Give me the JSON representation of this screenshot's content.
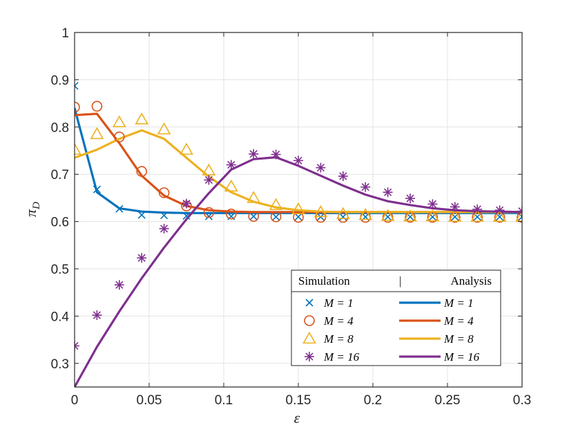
{
  "chart_data": {
    "type": "line",
    "title": "",
    "xlabel": "ε",
    "ylabel_main": "π",
    "ylabel_sub": "D",
    "xlim": [
      0,
      0.3
    ],
    "ylim": [
      0.25,
      1
    ],
    "xticks": [
      0,
      0.05,
      0.1,
      0.15,
      0.2,
      0.25,
      0.3
    ],
    "xtick_labels": [
      "0",
      "0.05",
      "0.1",
      "0.15",
      "0.2",
      "0.25",
      "0.3"
    ],
    "yticks": [
      0.3,
      0.4,
      0.5,
      0.6,
      0.7,
      0.8,
      0.9,
      1
    ],
    "ytick_labels": [
      "0.3",
      "0.4",
      "0.5",
      "0.6",
      "0.7",
      "0.8",
      "0.9",
      "1"
    ],
    "grid": true,
    "legend_position": "bottom-right",
    "legend_header": {
      "left": "Simulation",
      "sep": "|",
      "right": "Analysis"
    },
    "legend_entries": [
      {
        "sim_label": "M = 1",
        "ana_label": "M = 1"
      },
      {
        "sim_label": "M = 4",
        "ana_label": "M = 4"
      },
      {
        "sim_label": "M = 8",
        "ana_label": "M = 8"
      },
      {
        "sim_label": "M = 16",
        "ana_label": "M = 16"
      }
    ],
    "simulation_x": [
      0,
      0.015,
      0.03,
      0.045,
      0.06,
      0.075,
      0.09,
      0.105,
      0.12,
      0.135,
      0.15,
      0.165,
      0.18,
      0.195,
      0.21,
      0.225,
      0.24,
      0.255,
      0.27,
      0.285,
      0.3
    ],
    "analysis_x": [
      0,
      0.015,
      0.03,
      0.045,
      0.06,
      0.075,
      0.09,
      0.105,
      0.12,
      0.135,
      0.15,
      0.165,
      0.18,
      0.195,
      0.21,
      0.225,
      0.24,
      0.255,
      0.27,
      0.285,
      0.3
    ],
    "series": [
      {
        "name": "M = 1",
        "color": "#0072BD",
        "marker": "x",
        "simulation": [
          0.887,
          0.668,
          0.627,
          0.614,
          0.613,
          0.612,
          0.611,
          0.611,
          0.611,
          0.61,
          0.61,
          0.61,
          0.61,
          0.61,
          0.61,
          0.61,
          0.61,
          0.61,
          0.61,
          0.61,
          0.61
        ],
        "analysis": [
          0.84,
          0.662,
          0.628,
          0.621,
          0.619,
          0.618,
          0.618,
          0.618,
          0.618,
          0.618,
          0.618,
          0.618,
          0.618,
          0.618,
          0.618,
          0.618,
          0.618,
          0.618,
          0.618,
          0.618,
          0.618
        ]
      },
      {
        "name": "M = 4",
        "color": "#D95319",
        "marker": "o",
        "simulation": [
          0.842,
          0.844,
          0.779,
          0.706,
          0.661,
          0.633,
          0.619,
          0.616,
          0.611,
          0.61,
          0.609,
          0.609,
          0.609,
          0.609,
          0.609,
          0.609,
          0.609,
          0.609,
          0.609,
          0.609,
          0.609
        ],
        "analysis": [
          0.825,
          0.828,
          0.766,
          0.697,
          0.655,
          0.633,
          0.624,
          0.621,
          0.62,
          0.62,
          0.62,
          0.62,
          0.62,
          0.62,
          0.62,
          0.62,
          0.62,
          0.62,
          0.62,
          0.62,
          0.62
        ]
      },
      {
        "name": "M = 8",
        "color": "#EDB120",
        "marker": "triangle",
        "simulation": [
          0.752,
          0.785,
          0.81,
          0.816,
          0.795,
          0.752,
          0.708,
          0.674,
          0.65,
          0.635,
          0.626,
          0.62,
          0.616,
          0.614,
          0.612,
          0.611,
          0.611,
          0.61,
          0.61,
          0.61,
          0.61
        ],
        "analysis": [
          0.735,
          0.752,
          0.775,
          0.793,
          0.775,
          0.735,
          0.695,
          0.662,
          0.642,
          0.63,
          0.624,
          0.621,
          0.62,
          0.62,
          0.62,
          0.62,
          0.62,
          0.62,
          0.62,
          0.62,
          0.62
        ]
      },
      {
        "name": "M = 16",
        "color": "#7E2F8E",
        "marker": "asterisk",
        "simulation": [
          0.337,
          0.402,
          0.466,
          0.523,
          0.585,
          0.638,
          0.688,
          0.72,
          0.743,
          0.742,
          0.729,
          0.714,
          0.696,
          0.673,
          0.662,
          0.649,
          0.637,
          0.631,
          0.626,
          0.624,
          0.622
        ],
        "analysis": [
          0.25,
          0.335,
          0.41,
          0.48,
          0.545,
          0.605,
          0.66,
          0.71,
          0.732,
          0.736,
          0.718,
          0.697,
          0.676,
          0.657,
          0.643,
          0.635,
          0.628,
          0.624,
          0.622,
          0.621,
          0.62
        ]
      }
    ]
  }
}
